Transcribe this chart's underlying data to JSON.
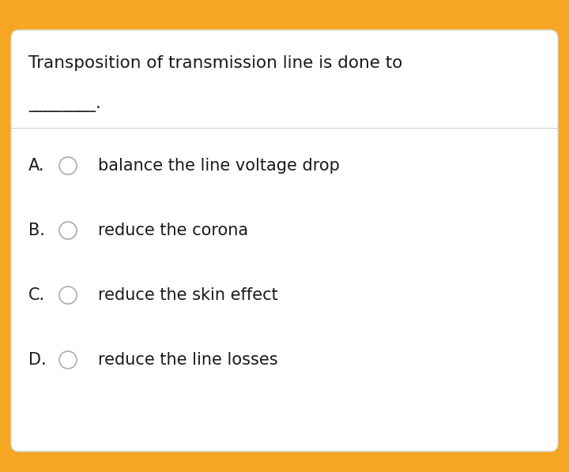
{
  "title_line1": "Transposition of transmission line is done to",
  "blank_text": "________.",
  "options": [
    {
      "label": "A.",
      "text": "balance the line voltage drop"
    },
    {
      "label": "B.",
      "text": "reduce the corona"
    },
    {
      "label": "C.",
      "text": "reduce the skin effect"
    },
    {
      "label": "D.",
      "text": "reduce the line losses"
    }
  ],
  "bg_color": "#F5A623",
  "header_color": "#F5A623",
  "card_bg": "#ffffff",
  "text_color": "#1a1a1a",
  "separator_color": "#d0d0d0",
  "radio_edge_color": "#b0b0b0",
  "radio_fill_color": "#ffffff",
  "card_border_color": "#d8d8d8",
  "title_fontsize": 15.5,
  "option_label_fontsize": 15,
  "option_text_fontsize": 15,
  "fig_w": 7.2,
  "fig_h": 5.98,
  "dpi": 100
}
